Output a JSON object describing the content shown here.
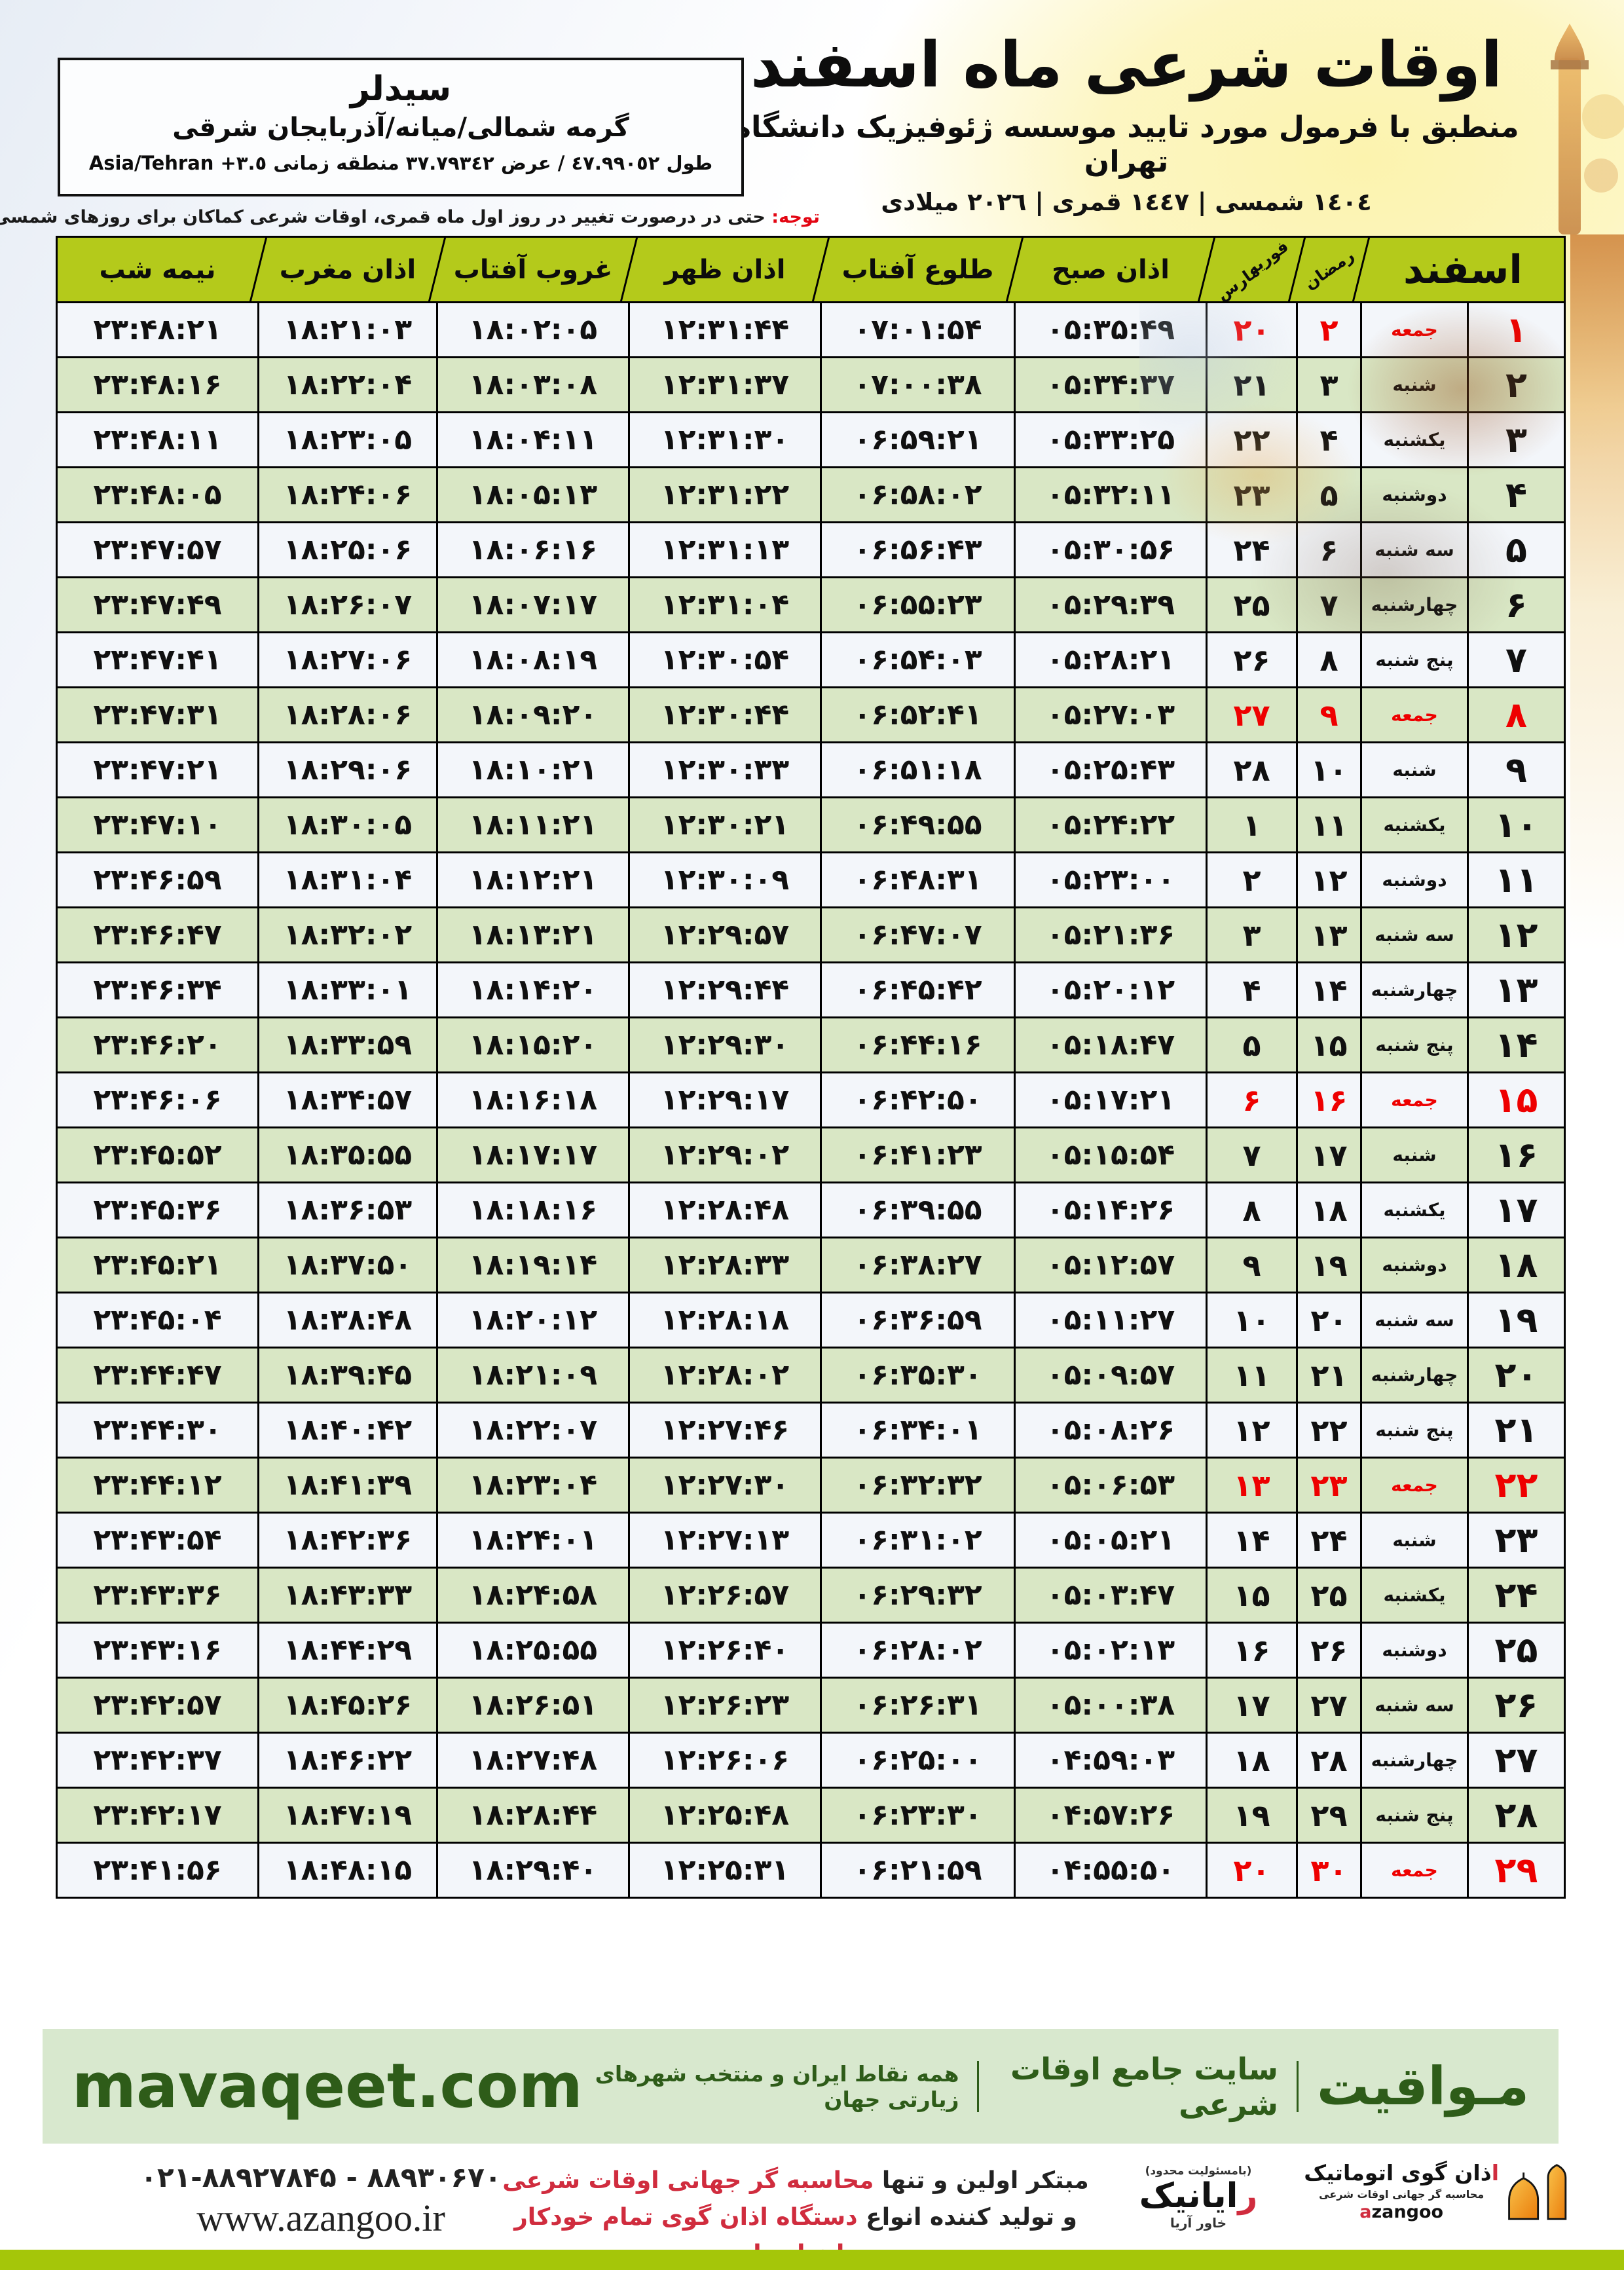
{
  "colors": {
    "header_green": "#b4ca1b",
    "row_green": "#d9e7c5",
    "row_white": "#f3f6fa",
    "friday_red": "#ee0000",
    "notice_red": "#e30613",
    "mavaqeet_green_bg": "#d8e8ce",
    "mavaqeet_green_text": "#2e5c19",
    "footer_stripe": "#a5c609",
    "promo_red": "#d02c3e",
    "logo_orange": "#f0941e"
  },
  "header": {
    "title": "اوقات شرعی ماه اسفند",
    "subtitle": "منطبق با فرمول مورد تایید موسسه ژئوفیزیک دانشگاه تهران",
    "date_line": "١٤٠٤ شمسی | ١٤٤٧ قمری | ٢٠٢٦ میلادی",
    "city": {
      "name": "سیدلر",
      "region": "گرمه شمالی/میانه/آذربایجان شرقی",
      "coords": "طول ٤٧.٩٩٠٥٢ / عرض ٣٧.٧٩٣٤٢ منطقه زمانی ⁦Asia/Tehran +٣.٥⁩"
    },
    "notice_label": "توجه:",
    "notice_text": " حتی در درصورت تغییر در روز اول ماه قمری، اوقات شرعی کماکان برای روزهای شمسی و میلادی معتبر است."
  },
  "table": {
    "headers": {
      "month": "اسفند",
      "ramadan": "رمضان",
      "feb": "فوریه",
      "mar": "مارس",
      "sobh": "اذان صبح",
      "tolu": "طلوع آفتاب",
      "zohr": "اذان ظهر",
      "ghorub": "غروب آفتاب",
      "maghreb": "اذان مغرب",
      "nime": "نیمه شب"
    },
    "rows": [
      {
        "day": "۱",
        "weekday": "جمعه",
        "ramadan": "۲",
        "feb_mar": "۲۰",
        "sobh": "۰۵:۳۵:۴۹",
        "tolu": "۰۷:۰۱:۵۴",
        "zohr": "۱۲:۳۱:۴۴",
        "ghorub": "۱۸:۰۲:۰۵",
        "maghreb": "۱۸:۲۱:۰۳",
        "nime": "۲۳:۴۸:۲۱",
        "friday": true
      },
      {
        "day": "۲",
        "weekday": "شنبه",
        "ramadan": "۳",
        "feb_mar": "۲۱",
        "sobh": "۰۵:۳۴:۳۷",
        "tolu": "۰۷:۰۰:۳۸",
        "zohr": "۱۲:۳۱:۳۷",
        "ghorub": "۱۸:۰۳:۰۸",
        "maghreb": "۱۸:۲۲:۰۴",
        "nime": "۲۳:۴۸:۱۶",
        "friday": false
      },
      {
        "day": "۳",
        "weekday": "یکشنبه",
        "ramadan": "۴",
        "feb_mar": "۲۲",
        "sobh": "۰۵:۳۳:۲۵",
        "tolu": "۰۶:۵۹:۲۱",
        "zohr": "۱۲:۳۱:۳۰",
        "ghorub": "۱۸:۰۴:۱۱",
        "maghreb": "۱۸:۲۳:۰۵",
        "nime": "۲۳:۴۸:۱۱",
        "friday": false
      },
      {
        "day": "۴",
        "weekday": "دوشنبه",
        "ramadan": "۵",
        "feb_mar": "۲۳",
        "sobh": "۰۵:۳۲:۱۱",
        "tolu": "۰۶:۵۸:۰۲",
        "zohr": "۱۲:۳۱:۲۲",
        "ghorub": "۱۸:۰۵:۱۳",
        "maghreb": "۱۸:۲۴:۰۶",
        "nime": "۲۳:۴۸:۰۵",
        "friday": false
      },
      {
        "day": "۵",
        "weekday": "سه شنبه",
        "ramadan": "۶",
        "feb_mar": "۲۴",
        "sobh": "۰۵:۳۰:۵۶",
        "tolu": "۰۶:۵۶:۴۳",
        "zohr": "۱۲:۳۱:۱۳",
        "ghorub": "۱۸:۰۶:۱۶",
        "maghreb": "۱۸:۲۵:۰۶",
        "nime": "۲۳:۴۷:۵۷",
        "friday": false
      },
      {
        "day": "۶",
        "weekday": "چهارشنبه",
        "ramadan": "۷",
        "feb_mar": "۲۵",
        "sobh": "۰۵:۲۹:۳۹",
        "tolu": "۰۶:۵۵:۲۳",
        "zohr": "۱۲:۳۱:۰۴",
        "ghorub": "۱۸:۰۷:۱۷",
        "maghreb": "۱۸:۲۶:۰۷",
        "nime": "۲۳:۴۷:۴۹",
        "friday": false
      },
      {
        "day": "۷",
        "weekday": "پنج شنبه",
        "ramadan": "۸",
        "feb_mar": "۲۶",
        "sobh": "۰۵:۲۸:۲۱",
        "tolu": "۰۶:۵۴:۰۳",
        "zohr": "۱۲:۳۰:۵۴",
        "ghorub": "۱۸:۰۸:۱۹",
        "maghreb": "۱۸:۲۷:۰۶",
        "nime": "۲۳:۴۷:۴۱",
        "friday": false
      },
      {
        "day": "۸",
        "weekday": "جمعه",
        "ramadan": "۹",
        "feb_mar": "۲۷",
        "sobh": "۰۵:۲۷:۰۳",
        "tolu": "۰۶:۵۲:۴۱",
        "zohr": "۱۲:۳۰:۴۴",
        "ghorub": "۱۸:۰۹:۲۰",
        "maghreb": "۱۸:۲۸:۰۶",
        "nime": "۲۳:۴۷:۳۱",
        "friday": true
      },
      {
        "day": "۹",
        "weekday": "شنبه",
        "ramadan": "۱۰",
        "feb_mar": "۲۸",
        "sobh": "۰۵:۲۵:۴۳",
        "tolu": "۰۶:۵۱:۱۸",
        "zohr": "۱۲:۳۰:۳۳",
        "ghorub": "۱۸:۱۰:۲۱",
        "maghreb": "۱۸:۲۹:۰۶",
        "nime": "۲۳:۴۷:۲۱",
        "friday": false
      },
      {
        "day": "۱۰",
        "weekday": "یکشنبه",
        "ramadan": "۱۱",
        "feb_mar": "۱",
        "sobh": "۰۵:۲۴:۲۲",
        "tolu": "۰۶:۴۹:۵۵",
        "zohr": "۱۲:۳۰:۲۱",
        "ghorub": "۱۸:۱۱:۲۱",
        "maghreb": "۱۸:۳۰:۰۵",
        "nime": "۲۳:۴۷:۱۰",
        "friday": false
      },
      {
        "day": "۱۱",
        "weekday": "دوشنبه",
        "ramadan": "۱۲",
        "feb_mar": "۲",
        "sobh": "۰۵:۲۳:۰۰",
        "tolu": "۰۶:۴۸:۳۱",
        "zohr": "۱۲:۳۰:۰۹",
        "ghorub": "۱۸:۱۲:۲۱",
        "maghreb": "۱۸:۳۱:۰۴",
        "nime": "۲۳:۴۶:۵۹",
        "friday": false
      },
      {
        "day": "۱۲",
        "weekday": "سه شنبه",
        "ramadan": "۱۳",
        "feb_mar": "۳",
        "sobh": "۰۵:۲۱:۳۶",
        "tolu": "۰۶:۴۷:۰۷",
        "zohr": "۱۲:۲۹:۵۷",
        "ghorub": "۱۸:۱۳:۲۱",
        "maghreb": "۱۸:۳۲:۰۲",
        "nime": "۲۳:۴۶:۴۷",
        "friday": false
      },
      {
        "day": "۱۳",
        "weekday": "چهارشنبه",
        "ramadan": "۱۴",
        "feb_mar": "۴",
        "sobh": "۰۵:۲۰:۱۲",
        "tolu": "۰۶:۴۵:۴۲",
        "zohr": "۱۲:۲۹:۴۴",
        "ghorub": "۱۸:۱۴:۲۰",
        "maghreb": "۱۸:۳۳:۰۱",
        "nime": "۲۳:۴۶:۳۴",
        "friday": false
      },
      {
        "day": "۱۴",
        "weekday": "پنج شنبه",
        "ramadan": "۱۵",
        "feb_mar": "۵",
        "sobh": "۰۵:۱۸:۴۷",
        "tolu": "۰۶:۴۴:۱۶",
        "zohr": "۱۲:۲۹:۳۰",
        "ghorub": "۱۸:۱۵:۲۰",
        "maghreb": "۱۸:۳۳:۵۹",
        "nime": "۲۳:۴۶:۲۰",
        "friday": false
      },
      {
        "day": "۱۵",
        "weekday": "جمعه",
        "ramadan": "۱۶",
        "feb_mar": "۶",
        "sobh": "۰۵:۱۷:۲۱",
        "tolu": "۰۶:۴۲:۵۰",
        "zohr": "۱۲:۲۹:۱۷",
        "ghorub": "۱۸:۱۶:۱۸",
        "maghreb": "۱۸:۳۴:۵۷",
        "nime": "۲۳:۴۶:۰۶",
        "friday": true
      },
      {
        "day": "۱۶",
        "weekday": "شنبه",
        "ramadan": "۱۷",
        "feb_mar": "۷",
        "sobh": "۰۵:۱۵:۵۴",
        "tolu": "۰۶:۴۱:۲۳",
        "zohr": "۱۲:۲۹:۰۲",
        "ghorub": "۱۸:۱۷:۱۷",
        "maghreb": "۱۸:۳۵:۵۵",
        "nime": "۲۳:۴۵:۵۲",
        "friday": false
      },
      {
        "day": "۱۷",
        "weekday": "یکشنبه",
        "ramadan": "۱۸",
        "feb_mar": "۸",
        "sobh": "۰۵:۱۴:۲۶",
        "tolu": "۰۶:۳۹:۵۵",
        "zohr": "۱۲:۲۸:۴۸",
        "ghorub": "۱۸:۱۸:۱۶",
        "maghreb": "۱۸:۳۶:۵۳",
        "nime": "۲۳:۴۵:۳۶",
        "friday": false
      },
      {
        "day": "۱۸",
        "weekday": "دوشنبه",
        "ramadan": "۱۹",
        "feb_mar": "۹",
        "sobh": "۰۵:۱۲:۵۷",
        "tolu": "۰۶:۳۸:۲۷",
        "zohr": "۱۲:۲۸:۳۳",
        "ghorub": "۱۸:۱۹:۱۴",
        "maghreb": "۱۸:۳۷:۵۰",
        "nime": "۲۳:۴۵:۲۱",
        "friday": false
      },
      {
        "day": "۱۹",
        "weekday": "سه شنبه",
        "ramadan": "۲۰",
        "feb_mar": "۱۰",
        "sobh": "۰۵:۱۱:۲۷",
        "tolu": "۰۶:۳۶:۵۹",
        "zohr": "۱۲:۲۸:۱۸",
        "ghorub": "۱۸:۲۰:۱۲",
        "maghreb": "۱۸:۳۸:۴۸",
        "nime": "۲۳:۴۵:۰۴",
        "friday": false
      },
      {
        "day": "۲۰",
        "weekday": "چهارشنبه",
        "ramadan": "۲۱",
        "feb_mar": "۱۱",
        "sobh": "۰۵:۰۹:۵۷",
        "tolu": "۰۶:۳۵:۳۰",
        "zohr": "۱۲:۲۸:۰۲",
        "ghorub": "۱۸:۲۱:۰۹",
        "maghreb": "۱۸:۳۹:۴۵",
        "nime": "۲۳:۴۴:۴۷",
        "friday": false
      },
      {
        "day": "۲۱",
        "weekday": "پنج شنبه",
        "ramadan": "۲۲",
        "feb_mar": "۱۲",
        "sobh": "۰۵:۰۸:۲۶",
        "tolu": "۰۶:۳۴:۰۱",
        "zohr": "۱۲:۲۷:۴۶",
        "ghorub": "۱۸:۲۲:۰۷",
        "maghreb": "۱۸:۴۰:۴۲",
        "nime": "۲۳:۴۴:۳۰",
        "friday": false
      },
      {
        "day": "۲۲",
        "weekday": "جمعه",
        "ramadan": "۲۳",
        "feb_mar": "۱۳",
        "sobh": "۰۵:۰۶:۵۳",
        "tolu": "۰۶:۳۲:۳۲",
        "zohr": "۱۲:۲۷:۳۰",
        "ghorub": "۱۸:۲۳:۰۴",
        "maghreb": "۱۸:۴۱:۳۹",
        "nime": "۲۳:۴۴:۱۲",
        "friday": true
      },
      {
        "day": "۲۳",
        "weekday": "شنبه",
        "ramadan": "۲۴",
        "feb_mar": "۱۴",
        "sobh": "۰۵:۰۵:۲۱",
        "tolu": "۰۶:۳۱:۰۲",
        "zohr": "۱۲:۲۷:۱۳",
        "ghorub": "۱۸:۲۴:۰۱",
        "maghreb": "۱۸:۴۲:۳۶",
        "nime": "۲۳:۴۳:۵۴",
        "friday": false
      },
      {
        "day": "۲۴",
        "weekday": "یکشنبه",
        "ramadan": "۲۵",
        "feb_mar": "۱۵",
        "sobh": "۰۵:۰۳:۴۷",
        "tolu": "۰۶:۲۹:۳۲",
        "zohr": "۱۲:۲۶:۵۷",
        "ghorub": "۱۸:۲۴:۵۸",
        "maghreb": "۱۸:۴۳:۳۳",
        "nime": "۲۳:۴۳:۳۶",
        "friday": false
      },
      {
        "day": "۲۵",
        "weekday": "دوشنبه",
        "ramadan": "۲۶",
        "feb_mar": "۱۶",
        "sobh": "۰۵:۰۲:۱۳",
        "tolu": "۰۶:۲۸:۰۲",
        "zohr": "۱۲:۲۶:۴۰",
        "ghorub": "۱۸:۲۵:۵۵",
        "maghreb": "۱۸:۴۴:۲۹",
        "nime": "۲۳:۴۳:۱۶",
        "friday": false
      },
      {
        "day": "۲۶",
        "weekday": "سه شنبه",
        "ramadan": "۲۷",
        "feb_mar": "۱۷",
        "sobh": "۰۵:۰۰:۳۸",
        "tolu": "۰۶:۲۶:۳۱",
        "zohr": "۱۲:۲۶:۲۳",
        "ghorub": "۱۸:۲۶:۵۱",
        "maghreb": "۱۸:۴۵:۲۶",
        "nime": "۲۳:۴۲:۵۷",
        "friday": false
      },
      {
        "day": "۲۷",
        "weekday": "چهارشنبه",
        "ramadan": "۲۸",
        "feb_mar": "۱۸",
        "sobh": "۰۴:۵۹:۰۳",
        "tolu": "۰۶:۲۵:۰۰",
        "zohr": "۱۲:۲۶:۰۶",
        "ghorub": "۱۸:۲۷:۴۸",
        "maghreb": "۱۸:۴۶:۲۲",
        "nime": "۲۳:۴۲:۳۷",
        "friday": false
      },
      {
        "day": "۲۸",
        "weekday": "پنج شنبه",
        "ramadan": "۲۹",
        "feb_mar": "۱۹",
        "sobh": "۰۴:۵۷:۲۶",
        "tolu": "۰۶:۲۳:۳۰",
        "zohr": "۱۲:۲۵:۴۸",
        "ghorub": "۱۸:۲۸:۴۴",
        "maghreb": "۱۸:۴۷:۱۹",
        "nime": "۲۳:۴۲:۱۷",
        "friday": false
      },
      {
        "day": "۲۹",
        "weekday": "جمعه",
        "ramadan": "۳۰",
        "feb_mar": "۲۰",
        "sobh": "۰۴:۵۵:۵۰",
        "tolu": "۰۶:۲۱:۵۹",
        "zohr": "۱۲:۲۵:۳۱",
        "ghorub": "۱۸:۲۹:۴۰",
        "maghreb": "۱۸:۴۸:۱۵",
        "nime": "۲۳:۴۱:۵۶",
        "friday": true
      }
    ]
  },
  "footer": {
    "mavaqeet": {
      "brand": "مـواقیت",
      "site_desc": "سایت جامع اوقات شرعی",
      "coverage": "همه نقاط ایران و منتخب شهرهای زیارتی جهان",
      "url": "mavaqeet.com"
    },
    "contact": {
      "phones": "۰۲۱-۸۸۹۲۷۸۴۵ - ۸۸۹۳۰۶۷۰",
      "website": "www.azangoo.ir"
    },
    "promo": {
      "line1_black": "مبتکر اولین و تنها ",
      "line1_red": "محاسبه گر جهانی اوقات شرعی",
      "line2_black": "و تولید کننده انواع ",
      "line2_red": "دستگاه اذان گوی تمام خودکار ماهواره ای"
    },
    "rayanik": {
      "llc": "(بامسئولیت محدود)",
      "initial": "ر",
      "rest": "ایانیک",
      "sub": "خاور آریا"
    },
    "azangoo": {
      "fa_initial": "ا",
      "fa_rest": "ذان گوی اتوماتیک",
      "fa_tagline": "محاسبه گر جهانی اوقات شرعی",
      "word_a": "a",
      "word_rest": "zangoo"
    }
  }
}
